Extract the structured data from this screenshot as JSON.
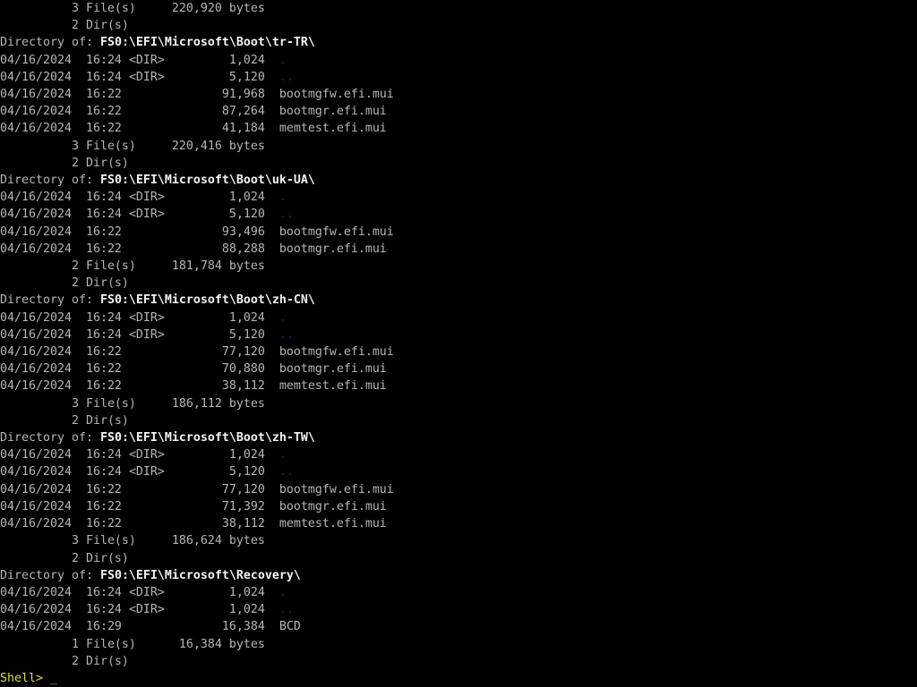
{
  "colors": {
    "background": "#000000",
    "foreground": "#b6b6b6",
    "path_highlight": "#f4f4f4",
    "directory_entry_blue": "#1d1d6e",
    "prompt_yellow": "#dcdc3c",
    "cursor_gray": "#a6a6a6"
  },
  "labels": {
    "directory_of": "Directory of:",
    "files_suffix": " File(s)",
    "dirs_suffix": " Dir(s)",
    "bytes_suffix": " bytes",
    "dir_tag": "<DIR>"
  },
  "terminal": {
    "leading_summary": {
      "file_count": "3",
      "file_bytes": "220,920",
      "dir_count": "2"
    },
    "sections": [
      {
        "path": "FS0:\\EFI\\Microsoft\\Boot\\tr-TR\\",
        "entries": [
          {
            "date": "04/16/2024",
            "time": "16:24",
            "dir": true,
            "size": "1,024",
            "name": "."
          },
          {
            "date": "04/16/2024",
            "time": "16:24",
            "dir": true,
            "size": "5,120",
            "name": ".."
          },
          {
            "date": "04/16/2024",
            "time": "16:22",
            "dir": false,
            "size": "91,968",
            "name": "bootmgfw.efi.mui"
          },
          {
            "date": "04/16/2024",
            "time": "16:22",
            "dir": false,
            "size": "87,264",
            "name": "bootmgr.efi.mui"
          },
          {
            "date": "04/16/2024",
            "time": "16:22",
            "dir": false,
            "size": "41,184",
            "name": "memtest.efi.mui"
          }
        ],
        "file_count": "3",
        "file_bytes": "220,416",
        "dir_count": "2"
      },
      {
        "path": "FS0:\\EFI\\Microsoft\\Boot\\uk-UA\\",
        "entries": [
          {
            "date": "04/16/2024",
            "time": "16:24",
            "dir": true,
            "size": "1,024",
            "name": "."
          },
          {
            "date": "04/16/2024",
            "time": "16:24",
            "dir": true,
            "size": "5,120",
            "name": ".."
          },
          {
            "date": "04/16/2024",
            "time": "16:22",
            "dir": false,
            "size": "93,496",
            "name": "bootmgfw.efi.mui"
          },
          {
            "date": "04/16/2024",
            "time": "16:22",
            "dir": false,
            "size": "88,288",
            "name": "bootmgr.efi.mui"
          }
        ],
        "file_count": "2",
        "file_bytes": "181,784",
        "dir_count": "2"
      },
      {
        "path": "FS0:\\EFI\\Microsoft\\Boot\\zh-CN\\",
        "entries": [
          {
            "date": "04/16/2024",
            "time": "16:24",
            "dir": true,
            "size": "1,024",
            "name": "."
          },
          {
            "date": "04/16/2024",
            "time": "16:24",
            "dir": true,
            "size": "5,120",
            "name": ".."
          },
          {
            "date": "04/16/2024",
            "time": "16:22",
            "dir": false,
            "size": "77,120",
            "name": "bootmgfw.efi.mui"
          },
          {
            "date": "04/16/2024",
            "time": "16:22",
            "dir": false,
            "size": "70,880",
            "name": "bootmgr.efi.mui"
          },
          {
            "date": "04/16/2024",
            "time": "16:22",
            "dir": false,
            "size": "38,112",
            "name": "memtest.efi.mui"
          }
        ],
        "file_count": "3",
        "file_bytes": "186,112",
        "dir_count": "2"
      },
      {
        "path": "FS0:\\EFI\\Microsoft\\Boot\\zh-TW\\",
        "entries": [
          {
            "date": "04/16/2024",
            "time": "16:24",
            "dir": true,
            "size": "1,024",
            "name": "."
          },
          {
            "date": "04/16/2024",
            "time": "16:24",
            "dir": true,
            "size": "5,120",
            "name": ".."
          },
          {
            "date": "04/16/2024",
            "time": "16:22",
            "dir": false,
            "size": "77,120",
            "name": "bootmgfw.efi.mui"
          },
          {
            "date": "04/16/2024",
            "time": "16:22",
            "dir": false,
            "size": "71,392",
            "name": "bootmgr.efi.mui"
          },
          {
            "date": "04/16/2024",
            "time": "16:22",
            "dir": false,
            "size": "38,112",
            "name": "memtest.efi.mui"
          }
        ],
        "file_count": "3",
        "file_bytes": "186,624",
        "dir_count": "2"
      },
      {
        "path": "FS0:\\EFI\\Microsoft\\Recovery\\",
        "entries": [
          {
            "date": "04/16/2024",
            "time": "16:24",
            "dir": true,
            "size": "1,024",
            "name": "."
          },
          {
            "date": "04/16/2024",
            "time": "16:24",
            "dir": true,
            "size": "1,024",
            "name": ".."
          },
          {
            "date": "04/16/2024",
            "time": "16:29",
            "dir": false,
            "size": "16,384",
            "name": "BCD"
          }
        ],
        "file_count": "1",
        "file_bytes": "16,384",
        "dir_count": "2"
      }
    ],
    "prompt_label": "Shell>",
    "cursor": "_"
  }
}
